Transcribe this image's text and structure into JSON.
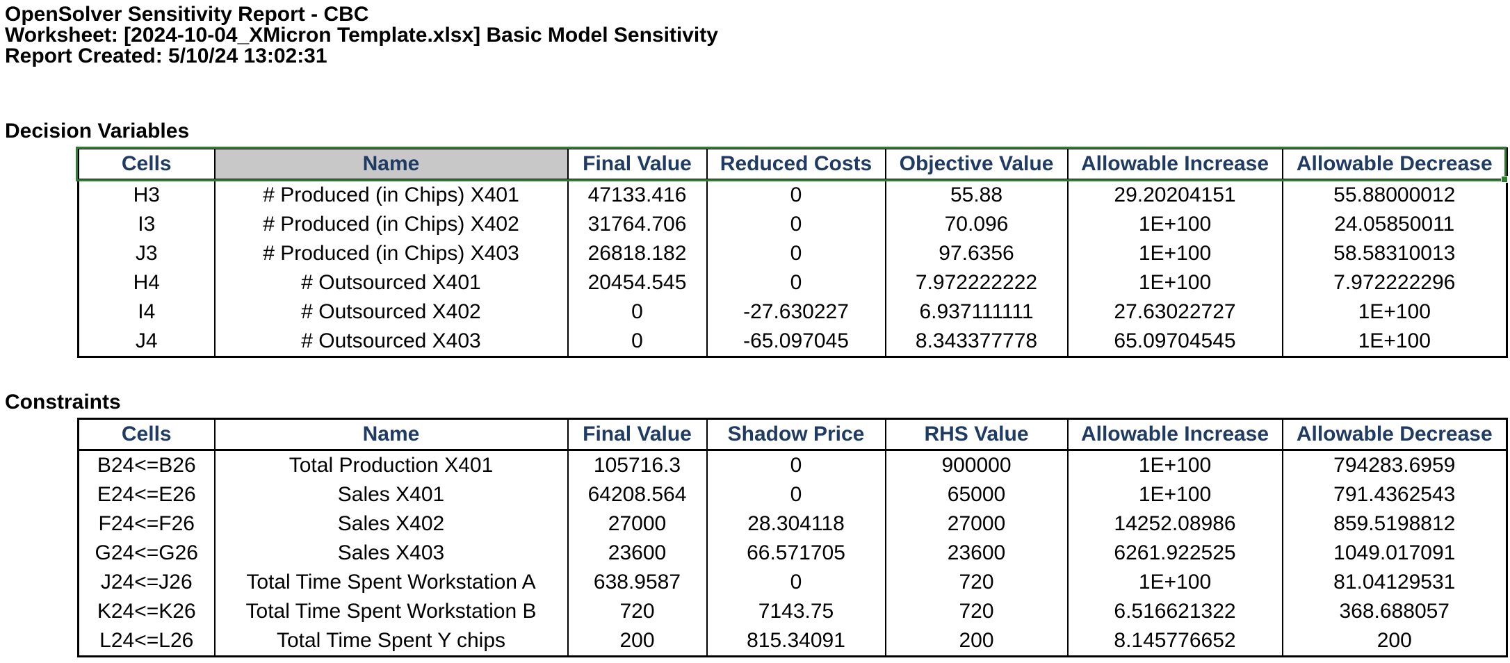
{
  "report": {
    "title": "OpenSolver Sensitivity Report - CBC",
    "worksheet": "Worksheet: [2024-10-04_XMicron Template.xlsx] Basic Model Sensitivity",
    "created": "Report Created: 5/10/24 13:02:31"
  },
  "decision_variables": {
    "section_title": "Decision Variables",
    "headers": [
      "Cells",
      "Name",
      "Final Value",
      "Reduced Costs",
      "Objective Value",
      "Allowable Increase",
      "Allowable Decrease"
    ],
    "rows": [
      [
        "H3",
        "# Produced (in Chips) X401",
        "47133.416",
        "0",
        "55.88",
        "29.20204151",
        "55.88000012"
      ],
      [
        "I3",
        "# Produced (in Chips) X402",
        "31764.706",
        "0",
        "70.096",
        "1E+100",
        "24.05850011"
      ],
      [
        "J3",
        "# Produced (in Chips) X403",
        "26818.182",
        "0",
        "97.6356",
        "1E+100",
        "58.58310013"
      ],
      [
        "H4",
        "# Outsourced X401",
        "20454.545",
        "0",
        "7.972222222",
        "1E+100",
        "7.972222296"
      ],
      [
        "I4",
        "# Outsourced X402",
        "0",
        "-27.630227",
        "6.937111111",
        "27.63022727",
        "1E+100"
      ],
      [
        "J4",
        "# Outsourced X403",
        "0",
        "-65.097045",
        "8.343377778",
        "65.09704545",
        "1E+100"
      ]
    ]
  },
  "constraints": {
    "section_title": "Constraints",
    "headers": [
      "Cells",
      "Name",
      "Final Value",
      "Shadow Price",
      "RHS Value",
      "Allowable Increase",
      "Allowable Decrease"
    ],
    "rows": [
      [
        "B24<=B26",
        "Total Production X401",
        "105716.3",
        "0",
        "900000",
        "1E+100",
        "794283.6959"
      ],
      [
        "E24<=E26",
        "Sales X401",
        "64208.564",
        "0",
        "65000",
        "1E+100",
        "791.4362543"
      ],
      [
        "F24<=F26",
        "Sales X402",
        "27000",
        "28.304118",
        "27000",
        "14252.08986",
        "859.5198812"
      ],
      [
        "G24<=G26",
        "Sales X403",
        "23600",
        "66.571705",
        "23600",
        "6261.922525",
        "1049.017091"
      ],
      [
        "J24<=J26",
        "Total Time Spent Workstation A",
        "638.9587",
        "0",
        "720",
        "1E+100",
        "81.04129531"
      ],
      [
        "K24<=K26",
        "Total Time Spent Workstation B",
        "720",
        "7143.75",
        "720",
        "6.516621322",
        "368.688057"
      ],
      [
        "L24<=L26",
        "Total Time Spent Y chips",
        "200",
        "815.34091",
        "200",
        "8.145776652",
        "200"
      ]
    ]
  },
  "colors": {
    "header_text": "#1f3b63",
    "name_header_fill": "#c8c8c8",
    "selection_border": "#2e7d32"
  }
}
